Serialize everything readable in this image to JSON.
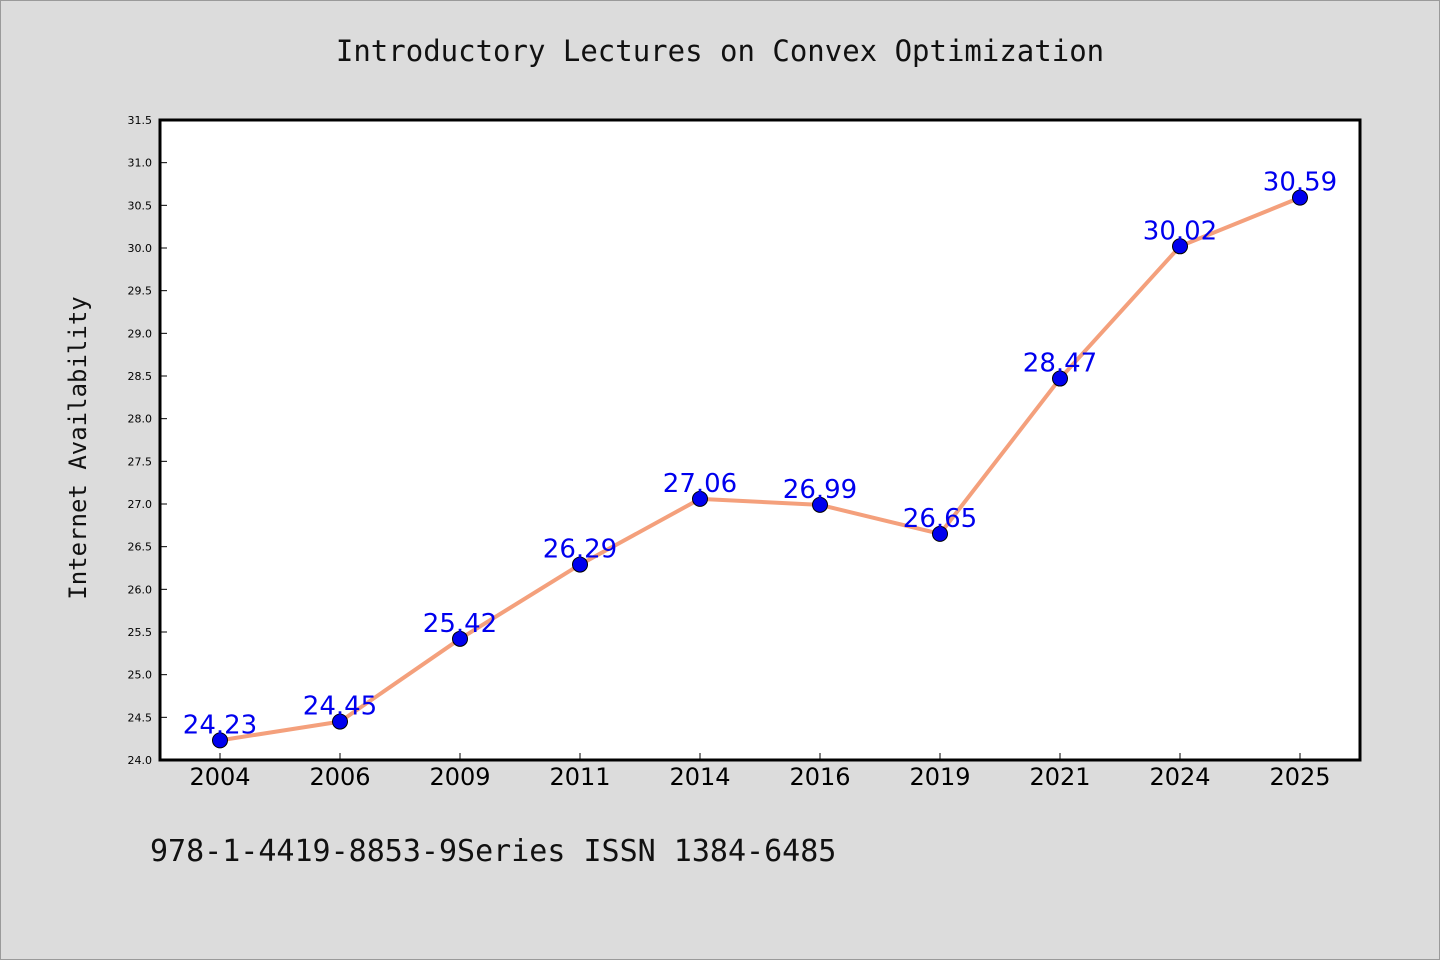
{
  "caption": "978-1-4419-8853-9Series ISSN 1384-6485",
  "chart_data": {
    "type": "line",
    "title": "Introductory Lectures on Convex Optimization",
    "xlabel": "",
    "ylabel": "Internet Availability",
    "categories": [
      "2004",
      "2006",
      "2009",
      "2011",
      "2014",
      "2016",
      "2019",
      "2021",
      "2024",
      "2025"
    ],
    "values": [
      24.23,
      24.45,
      25.42,
      26.29,
      27.06,
      26.99,
      26.65,
      28.47,
      30.02,
      30.59
    ],
    "data_labels": [
      "24.23",
      "24.45",
      "25.42",
      "26.29",
      "27.06",
      "26.99",
      "26.65",
      "28.47",
      "30.02",
      "30.59"
    ],
    "ylim": [
      24.0,
      31.5
    ],
    "yticks": [
      "24.0",
      "24.5",
      "25.0",
      "25.5",
      "26.0",
      "26.5",
      "27.0",
      "27.5",
      "28.0",
      "28.5",
      "29.0",
      "29.5",
      "30.0",
      "30.5",
      "31.0",
      "31.5"
    ],
    "grid": false,
    "legend": "none",
    "colors": {
      "line": "#f4a07c",
      "marker": "#0000ee",
      "label": "#0000ee",
      "plot_bg": "#ffffff",
      "page_bg": "#dcdcdc"
    }
  }
}
